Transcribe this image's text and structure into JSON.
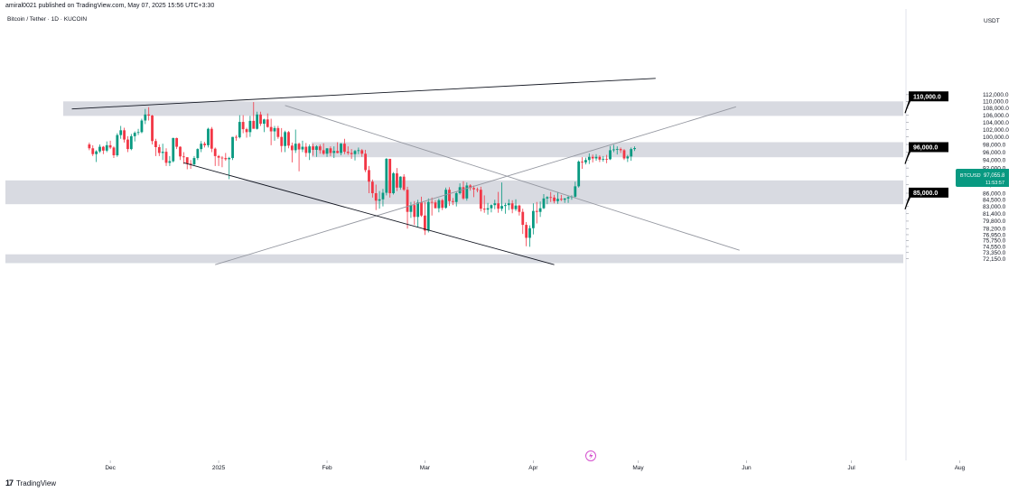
{
  "header": {
    "published": "amiral0021 published on TradingView.com, May 07, 2025 15:56 UTC+3:30",
    "symbol_line": "Bitcoin / Tether · 1D · KUCOIN"
  },
  "footer": {
    "brand": "TradingView"
  },
  "chart_data": {
    "type": "candlestick",
    "currency_label": "USDT",
    "y_ticks": [
      "112,000.0",
      "110,000.0",
      "108,000.0",
      "106,000.0",
      "104,000.0",
      "102,000.0",
      "100,000.0",
      "98,000.0",
      "96,000.0",
      "94,000.0",
      "92,000.0",
      "90,000.0",
      "88,000.0",
      "86,000.0",
      "84,500.0",
      "83,000.0",
      "81,400.0",
      "79,800.0",
      "78,200.0",
      "76,950.0",
      "75,750.0",
      "74,550.0",
      "73,350.0",
      "72,150.0"
    ],
    "x_ticks": [
      "Dec",
      "2025",
      "Feb",
      "Mar",
      "Apr",
      "May",
      "Jun",
      "Jul",
      "Aug"
    ],
    "price_scale": "logarithmic",
    "last_price": {
      "label": "BTCUSDT",
      "value": "97,055.8",
      "countdown": "11:53:57",
      "color": "#089981"
    },
    "callouts": [
      "110,000.0",
      "96,000.0",
      "85,000.0"
    ],
    "zones": [
      {
        "from": 105800,
        "to": 110000
      },
      {
        "from": 94700,
        "to": 98600
      },
      {
        "from": 83500,
        "to": 89000
      },
      {
        "from": 71300,
        "to": 73000
      }
    ],
    "trendlines": [
      {
        "color": "#131722",
        "from": [
          "2024-11-20",
          107800
        ],
        "to": [
          "2025-05-06",
          117000
        ]
      },
      {
        "color": "#9598a1",
        "from": [
          "2024-12-31",
          71000
        ],
        "to": [
          "2025-05-29",
          108400
        ]
      },
      {
        "color": "#9598a1",
        "from": [
          "2025-01-20",
          108800
        ],
        "to": [
          "2025-05-30",
          73800
        ]
      },
      {
        "color": "#131722",
        "from": [
          "2024-12-22",
          93300
        ],
        "to": [
          "2025-04-07",
          71000
        ]
      }
    ],
    "candles_ohlc_daily_from_2024-11-25": [
      [
        98000,
        98500,
        96500,
        97000
      ],
      [
        97000,
        97800,
        95000,
        95500
      ],
      [
        95500,
        96500,
        93500,
        96200
      ],
      [
        96200,
        98000,
        95800,
        97400
      ],
      [
        97400,
        97600,
        95500,
        96400
      ],
      [
        96400,
        98800,
        96000,
        97800
      ],
      [
        97800,
        99000,
        96800,
        97200
      ],
      [
        97200,
        97500,
        94500,
        95200
      ],
      [
        95200,
        101000,
        94800,
        100500
      ],
      [
        100500,
        103000,
        99500,
        101800
      ],
      [
        101800,
        102500,
        98500,
        99300
      ],
      [
        99300,
        100200,
        96000,
        96800
      ],
      [
        96800,
        100800,
        96500,
        100200
      ],
      [
        100200,
        101500,
        98800,
        101100
      ],
      [
        101100,
        102200,
        100500,
        101300
      ],
      [
        101300,
        105000,
        101000,
        104500
      ],
      [
        104500,
        107800,
        103500,
        106200
      ],
      [
        106200,
        108300,
        104500,
        105900
      ],
      [
        105900,
        106100,
        98000,
        98900
      ],
      [
        98900,
        99500,
        95000,
        97300
      ],
      [
        97300,
        98000,
        95000,
        95800
      ],
      [
        95800,
        98200,
        94000,
        96100
      ],
      [
        96100,
        97000,
        92500,
        93300
      ],
      [
        93300,
        95000,
        92500,
        93700
      ],
      [
        93700,
        99800,
        93400,
        99700
      ],
      [
        99700,
        99800,
        96800,
        97400
      ],
      [
        97400,
        97500,
        94000,
        94900
      ],
      [
        94900,
        96000,
        93000,
        94700
      ],
      [
        94700,
        94700,
        91700,
        93100
      ],
      [
        93100,
        94000,
        91800,
        92900
      ],
      [
        92900,
        95000,
        92600,
        94500
      ],
      [
        94500,
        97000,
        94000,
        96800
      ],
      [
        96800,
        98900,
        96000,
        98200
      ],
      [
        98200,
        98700,
        97200,
        97800
      ],
      [
        97800,
        102500,
        97200,
        102200
      ],
      [
        102200,
        102700,
        96000,
        96900
      ],
      [
        96900,
        97200,
        92500,
        95000
      ],
      [
        95000,
        95300,
        92500,
        94600
      ],
      [
        94600,
        95000,
        92200,
        94500
      ],
      [
        94500,
        95800,
        93800,
        94200
      ],
      [
        94200,
        94800,
        89300,
        94500
      ],
      [
        94500,
        100000,
        94000,
        100000
      ],
      [
        100000,
        100500,
        99000,
        99900
      ],
      [
        99900,
        106000,
        99600,
        104100
      ],
      [
        104100,
        106000,
        101000,
        102100
      ],
      [
        102100,
        102500,
        99800,
        101300
      ],
      [
        101300,
        105800,
        100000,
        104400
      ],
      [
        104400,
        109800,
        102500,
        102200
      ],
      [
        102200,
        107000,
        102000,
        106200
      ],
      [
        106200,
        107000,
        103000,
        103600
      ],
      [
        103600,
        105000,
        101300,
        104800
      ],
      [
        104800,
        106500,
        102500,
        102700
      ],
      [
        102700,
        105000,
        97800,
        101500
      ],
      [
        101500,
        103000,
        99000,
        102400
      ],
      [
        102400,
        103000,
        99500,
        100000
      ],
      [
        100000,
        102400,
        96000,
        97600
      ],
      [
        97600,
        101700,
        96000,
        101300
      ],
      [
        101300,
        101600,
        97000,
        97700
      ],
      [
        97700,
        98500,
        93400,
        96500
      ],
      [
        96500,
        102000,
        95800,
        98200
      ],
      [
        98200,
        98500,
        91200,
        96700
      ],
      [
        96700,
        99000,
        96000,
        97400
      ],
      [
        97400,
        98400,
        94800,
        95800
      ],
      [
        95800,
        98000,
        94000,
        97500
      ],
      [
        97500,
        98200,
        95100,
        96600
      ],
      [
        96600,
        97800,
        94800,
        97500
      ],
      [
        97500,
        98000,
        95600,
        96500
      ],
      [
        96500,
        98300,
        95300,
        95600
      ],
      [
        95600,
        97000,
        94800,
        97000
      ],
      [
        97000,
        97500,
        95000,
        95800
      ],
      [
        95800,
        97500,
        94500,
        96300
      ],
      [
        96300,
        98600,
        95700,
        95800
      ],
      [
        95800,
        98400,
        95200,
        98200
      ],
      [
        98200,
        99500,
        95500,
        96100
      ],
      [
        96100,
        97500,
        95300,
        95800
      ],
      [
        95800,
        96800,
        94300,
        95500
      ],
      [
        95500,
        96600,
        93900,
        96300
      ],
      [
        96300,
        97200,
        95500,
        96500
      ],
      [
        96500,
        96800,
        94800,
        95600
      ],
      [
        95600,
        96600,
        91000,
        91500
      ],
      [
        91500,
        92500,
        86000,
        88700
      ],
      [
        88700,
        89200,
        85000,
        86000
      ],
      [
        86000,
        88000,
        82200,
        84300
      ],
      [
        84300,
        86500,
        82500,
        84600
      ],
      [
        84600,
        87000,
        83000,
        86100
      ],
      [
        86100,
        94500,
        85500,
        94300
      ],
      [
        94300,
        94300,
        85000,
        86000
      ],
      [
        86000,
        91000,
        85700,
        90700
      ],
      [
        90700,
        92000,
        86500,
        87300
      ],
      [
        87300,
        90000,
        86800,
        89900
      ],
      [
        89900,
        90500,
        86500,
        86800
      ],
      [
        86800,
        87500,
        78200,
        81800
      ],
      [
        81800,
        84000,
        80500,
        83300
      ],
      [
        83300,
        84200,
        79000,
        80700
      ],
      [
        80700,
        84500,
        78500,
        83900
      ],
      [
        83900,
        85200,
        80700,
        81000
      ],
      [
        81000,
        84000,
        76900,
        77800
      ],
      [
        77800,
        84800,
        77400,
        84000
      ],
      [
        84000,
        85000,
        81000,
        83900
      ],
      [
        83900,
        84400,
        82600,
        82600
      ],
      [
        82600,
        84800,
        81700,
        84400
      ],
      [
        84400,
        84700,
        82200,
        82700
      ],
      [
        82700,
        87300,
        82500,
        86800
      ],
      [
        86800,
        87400,
        83100,
        84200
      ],
      [
        84200,
        84900,
        83300,
        84000
      ],
      [
        84000,
        86300,
        83000,
        86000
      ],
      [
        86000,
        88300,
        85700,
        87400
      ],
      [
        87400,
        88800,
        84500,
        84800
      ],
      [
        84800,
        88500,
        84300,
        87800
      ],
      [
        87800,
        88100,
        86600,
        87200
      ],
      [
        87200,
        87800,
        85100,
        86900
      ],
      [
        86900,
        87300,
        86200,
        86800
      ],
      [
        86800,
        87500,
        81900,
        82500
      ],
      [
        82500,
        85500,
        81600,
        82300
      ],
      [
        82300,
        83800,
        81200,
        82600
      ],
      [
        82600,
        83500,
        81700,
        83300
      ],
      [
        83300,
        84500,
        82400,
        83700
      ],
      [
        83700,
        86300,
        81600,
        82500
      ],
      [
        82500,
        88500,
        82000,
        83100
      ],
      [
        83100,
        83800,
        81400,
        83300
      ],
      [
        83300,
        84600,
        82200,
        83700
      ],
      [
        83700,
        84400,
        81500,
        82400
      ],
      [
        82400,
        84600,
        82000,
        83200
      ],
      [
        83200,
        83400,
        81000,
        81800
      ],
      [
        81800,
        82500,
        77100,
        79000
      ],
      [
        79000,
        79600,
        74600,
        76300
      ],
      [
        76300,
        78900,
        74500,
        78300
      ],
      [
        78300,
        83700,
        77000,
        82000
      ],
      [
        82000,
        84000,
        79300,
        81800
      ],
      [
        81800,
        84100,
        80700,
        82600
      ],
      [
        82600,
        85800,
        82400,
        84800
      ],
      [
        84800,
        85300,
        83500,
        85100
      ],
      [
        85100,
        86300,
        84000,
        85000
      ],
      [
        85000,
        85600,
        83700,
        84200
      ],
      [
        84200,
        86300,
        83600,
        84700
      ],
      [
        84700,
        85600,
        84200,
        84500
      ],
      [
        84500,
        84900,
        83800,
        84800
      ],
      [
        84800,
        85300,
        83800,
        85100
      ],
      [
        85100,
        85500,
        84500,
        85200
      ],
      [
        85200,
        88700,
        85000,
        87600
      ],
      [
        87600,
        93900,
        87300,
        93600
      ],
      [
        93600,
        94700,
        91800,
        93400
      ],
      [
        93400,
        94600,
        92900,
        94000
      ],
      [
        94000,
        95700,
        93000,
        94800
      ],
      [
        94800,
        95400,
        93400,
        94400
      ],
      [
        94400,
        95500,
        93800,
        94800
      ],
      [
        94800,
        95200,
        93500,
        94100
      ],
      [
        94100,
        95000,
        93600,
        94300
      ],
      [
        94300,
        95300,
        93200,
        94200
      ],
      [
        94200,
        97600,
        94000,
        96500
      ],
      [
        96500,
        97900,
        96000,
        96700
      ],
      [
        96700,
        97500,
        95400,
        96800
      ],
      [
        96800,
        97200,
        95800,
        96500
      ],
      [
        96500,
        96800,
        94000,
        94400
      ],
      [
        94400,
        95300,
        93500,
        94900
      ],
      [
        94900,
        97200,
        93800,
        96800
      ],
      [
        96800,
        97500,
        96300,
        97055.8
      ]
    ]
  }
}
